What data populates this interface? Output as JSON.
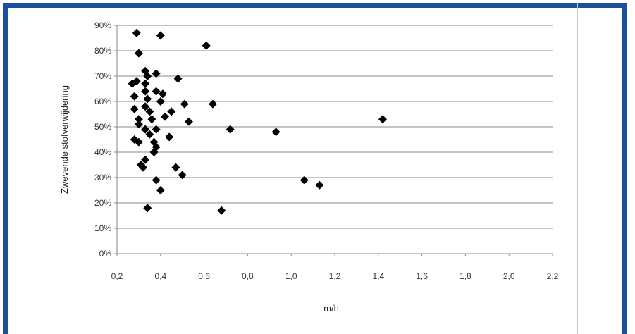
{
  "chart_data": {
    "type": "scatter",
    "title": "",
    "xlabel": "m/h",
    "ylabel": "Zwevende stofverwijdering",
    "xlim": [
      0.2,
      2.2
    ],
    "ylim": [
      0,
      90
    ],
    "x_ticks": [
      "0,2",
      "0,4",
      "0,6",
      "0,8",
      "1,0",
      "1,2",
      "1,4",
      "1,6",
      "1,8",
      "2,0",
      "2,2"
    ],
    "y_ticks": [
      "0%",
      "10%",
      "20%",
      "30%",
      "40%",
      "50%",
      "60%",
      "70%",
      "80%",
      "90%"
    ],
    "grid": "horizontal",
    "marker": "diamond",
    "marker_color": "#000000",
    "frame_color": "#1c4f9c",
    "points": [
      {
        "x": 0.29,
        "y": 87
      },
      {
        "x": 0.4,
        "y": 86
      },
      {
        "x": 0.61,
        "y": 82
      },
      {
        "x": 0.3,
        "y": 79
      },
      {
        "x": 0.33,
        "y": 72
      },
      {
        "x": 0.38,
        "y": 71
      },
      {
        "x": 0.34,
        "y": 70
      },
      {
        "x": 0.29,
        "y": 68
      },
      {
        "x": 0.27,
        "y": 67
      },
      {
        "x": 0.33,
        "y": 67
      },
      {
        "x": 0.48,
        "y": 69
      },
      {
        "x": 0.38,
        "y": 64
      },
      {
        "x": 0.41,
        "y": 63
      },
      {
        "x": 0.33,
        "y": 64
      },
      {
        "x": 0.28,
        "y": 62
      },
      {
        "x": 0.34,
        "y": 61
      },
      {
        "x": 0.4,
        "y": 60
      },
      {
        "x": 0.51,
        "y": 59
      },
      {
        "x": 0.64,
        "y": 59
      },
      {
        "x": 0.33,
        "y": 58
      },
      {
        "x": 0.28,
        "y": 57
      },
      {
        "x": 0.35,
        "y": 56
      },
      {
        "x": 0.45,
        "y": 56
      },
      {
        "x": 0.42,
        "y": 54
      },
      {
        "x": 0.36,
        "y": 53
      },
      {
        "x": 0.3,
        "y": 53
      },
      {
        "x": 0.53,
        "y": 52
      },
      {
        "x": 0.3,
        "y": 51
      },
      {
        "x": 0.33,
        "y": 49
      },
      {
        "x": 0.38,
        "y": 49
      },
      {
        "x": 0.72,
        "y": 49
      },
      {
        "x": 0.93,
        "y": 48
      },
      {
        "x": 1.42,
        "y": 53
      },
      {
        "x": 0.35,
        "y": 47
      },
      {
        "x": 0.44,
        "y": 46
      },
      {
        "x": 0.28,
        "y": 45
      },
      {
        "x": 0.3,
        "y": 44
      },
      {
        "x": 0.37,
        "y": 44
      },
      {
        "x": 0.38,
        "y": 42
      },
      {
        "x": 0.37,
        "y": 40
      },
      {
        "x": 0.33,
        "y": 37
      },
      {
        "x": 0.31,
        "y": 35
      },
      {
        "x": 0.32,
        "y": 34
      },
      {
        "x": 0.47,
        "y": 34
      },
      {
        "x": 0.5,
        "y": 31
      },
      {
        "x": 0.38,
        "y": 29
      },
      {
        "x": 1.06,
        "y": 29
      },
      {
        "x": 1.13,
        "y": 27
      },
      {
        "x": 0.4,
        "y": 25
      },
      {
        "x": 0.34,
        "y": 18
      },
      {
        "x": 0.68,
        "y": 17
      }
    ]
  }
}
